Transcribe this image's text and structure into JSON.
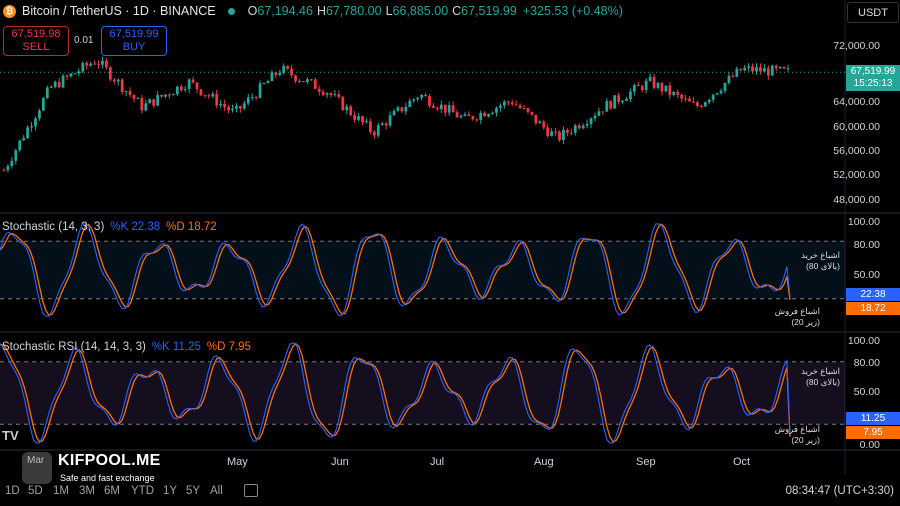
{
  "header": {
    "symbol_title": "Bitcoin / TetherUS · 1D · BINANCE",
    "btc_glyph": "₿",
    "ohlc": [
      {
        "label": "O",
        "value": "67,194.46"
      },
      {
        "label": "H",
        "value": "67,780.00"
      },
      {
        "label": "L",
        "value": "66,885.00"
      },
      {
        "label": "C",
        "value": "67,519.99"
      }
    ],
    "change": "+325.53 (+0.48%)",
    "currency": "USDT"
  },
  "trade": {
    "sell_price": "67,519.98",
    "sell_label": "SELL",
    "spread": "0.01",
    "buy_price": "67,519.99",
    "buy_label": "BUY"
  },
  "price_axis": {
    "ticks": [
      "72,000.00",
      "64,000.00",
      "60,000.00",
      "56,000.00",
      "52,000.00",
      "48,000.00"
    ],
    "current_price": "67,519.99",
    "countdown": "15:25:13"
  },
  "stoch": {
    "label": "Stochastic (14, 3, 3)",
    "k_label": "%K 22.38",
    "d_label": "%D 18.72",
    "k_value": "22.38",
    "d_value": "18.72",
    "ticks": [
      "100.00",
      "80.00",
      "50.00"
    ],
    "overbought_note_1": "اشباع خرید",
    "overbought_note_2": "(بالای 80)",
    "oversold_note_1": "اشباع فروش",
    "oversold_note_2": "(زیر 20)"
  },
  "stoch_rsi": {
    "label": "Stochastic RSI (14, 14, 3, 3)",
    "k_label": "%K 11.25",
    "d_label": "%D 7.95",
    "k_value": "11.25",
    "d_value": "7.95",
    "ticks": [
      "100.00",
      "80.00",
      "50.00",
      "0.00"
    ],
    "overbought_note_1": "اشباع خرید",
    "overbought_note_2": "(بالای 80)",
    "oversold_note_1": "اشباع فروش",
    "oversold_note_2": "(زیر 20)"
  },
  "time_axis": {
    "months": [
      "Mar",
      "May",
      "Jun",
      "Jul",
      "Aug",
      "Sep",
      "Oct"
    ]
  },
  "timeframes": [
    "1D",
    "5D",
    "1M",
    "3M",
    "6M",
    "YTD",
    "1Y",
    "5Y",
    "All"
  ],
  "clock": "08:34:47 (UTC+3:30)",
  "watermark": {
    "name": "KIFPOOL.ME",
    "tagline": "Safe and fast exchange",
    "tv": "TV"
  },
  "colors": {
    "up": "#26a69a",
    "down": "#f23645",
    "k_line": "#2962ff",
    "d_line": "#ff6d00"
  },
  "chart_data": [
    {
      "type": "candlestick",
      "title": "Bitcoin / TetherUS · 1D · BINANCE",
      "x_range": [
        "Mar",
        "Oct"
      ],
      "ylim": [
        46000,
        75000
      ],
      "close_approx": [
        {
          "x": "Mar",
          "y": 52000
        },
        {
          "x": "Apr (start)",
          "y": 65000
        },
        {
          "x": "Apr (mid)",
          "y": 69500
        },
        {
          "x": "Apr (end)",
          "y": 62000
        },
        {
          "x": "May",
          "y": 66000
        },
        {
          "x": "May (end)",
          "y": 61000
        },
        {
          "x": "Jun",
          "y": 68000
        },
        {
          "x": "Jun (end)",
          "y": 64500
        },
        {
          "x": "Jul",
          "y": 58000
        },
        {
          "x": "Jul (end)",
          "y": 64000
        },
        {
          "x": "Aug",
          "y": 60000
        },
        {
          "x": "Aug (mid)",
          "y": 63000
        },
        {
          "x": "Aug (end)",
          "y": 57000
        },
        {
          "x": "Sep",
          "y": 62000
        },
        {
          "x": "Sep (end)",
          "y": 66000
        },
        {
          "x": "Oct",
          "y": 62000
        },
        {
          "x": "Oct (mid)",
          "y": 68000
        },
        {
          "x": "Oct (latest)",
          "y": 67519.99
        }
      ],
      "last": {
        "open": 67194.46,
        "high": 67780.0,
        "low": 66885.0,
        "close": 67519.99
      }
    },
    {
      "type": "line",
      "title": "Stochastic (14, 3, 3)",
      "ylim": [
        0,
        100
      ],
      "bands": [
        20,
        80
      ],
      "series": [
        {
          "name": "%K",
          "last": 22.38
        },
        {
          "name": "%D",
          "last": 18.72
        }
      ]
    },
    {
      "type": "line",
      "title": "Stochastic RSI (14, 14, 3, 3)",
      "ylim": [
        0,
        100
      ],
      "bands": [
        20,
        80
      ],
      "series": [
        {
          "name": "%K",
          "last": 11.25
        },
        {
          "name": "%D",
          "last": 7.95
        }
      ]
    }
  ]
}
